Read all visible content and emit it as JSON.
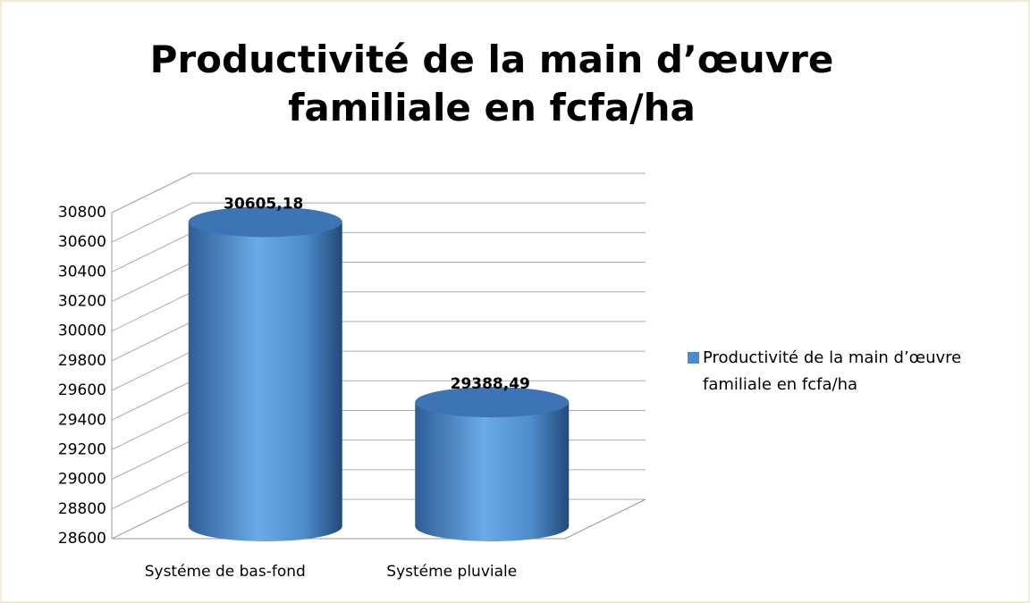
{
  "chart_data": {
    "type": "cylinder",
    "title": "Productivité de la main d’œuvre familiale en fcfa/ha",
    "categories": [
      "Systéme de bas-fond",
      "Systéme pluviale"
    ],
    "series": [
      {
        "name": "Productivité de la main d’œuvre familiale en fcfa/ha",
        "color": "#4a8ad0",
        "values": [
          30605.18,
          29388.49
        ],
        "value_labels": [
          "30605,18",
          "29388,49"
        ]
      }
    ],
    "ylim": [
      28600,
      30800
    ],
    "yticks": [
      28600,
      28800,
      29000,
      29200,
      29400,
      29600,
      29800,
      30000,
      30200,
      30400,
      30600,
      30800
    ],
    "grid": true,
    "legend": "right"
  }
}
